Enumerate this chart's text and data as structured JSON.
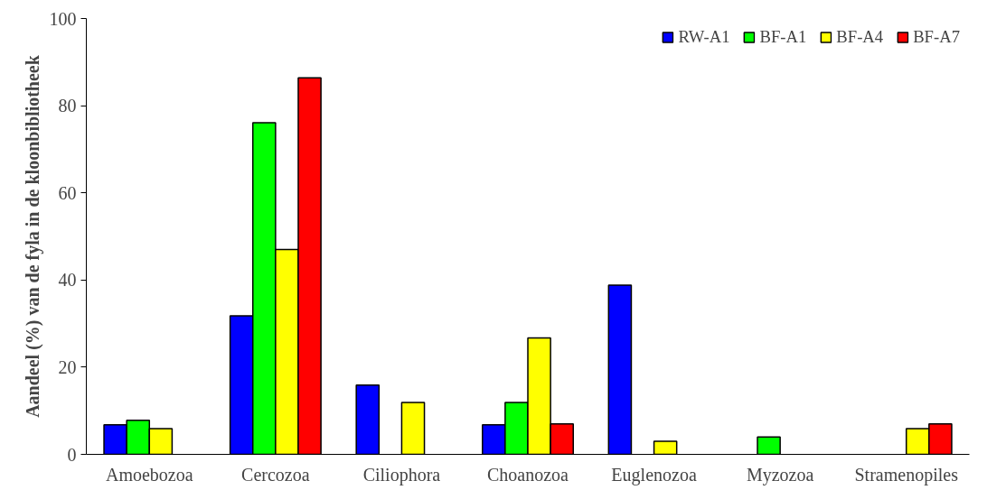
{
  "chart_data": {
    "type": "bar",
    "ylabel": "Aandeel (%) van de fyla in de kloonbibliotheek",
    "categories": [
      "Amoebozoa",
      "Cercozoa",
      "Ciliophora",
      "Choanozoa",
      "Euglenozoa",
      "Myzozoa",
      "Stramenopiles"
    ],
    "series": [
      {
        "name": "RW-A1",
        "color": "#0000ff",
        "values": [
          6.8,
          31.8,
          15.9,
          6.8,
          38.8,
          null,
          null
        ]
      },
      {
        "name": "BF-A1",
        "color": "#00ff00",
        "values": [
          7.8,
          76.1,
          null,
          11.9,
          null,
          4.0,
          null
        ]
      },
      {
        "name": "BF-A4",
        "color": "#ffff00",
        "values": [
          5.9,
          47.0,
          11.9,
          26.7,
          3.0,
          null,
          5.9
        ]
      },
      {
        "name": "BF-A7",
        "color": "#ff0000",
        "values": [
          null,
          86.4,
          null,
          7.0,
          null,
          null,
          7.0
        ]
      }
    ],
    "ylim": [
      0,
      100
    ],
    "yticks": [
      0,
      20,
      40,
      60,
      80,
      100
    ],
    "grid": false,
    "legend": "top right"
  }
}
